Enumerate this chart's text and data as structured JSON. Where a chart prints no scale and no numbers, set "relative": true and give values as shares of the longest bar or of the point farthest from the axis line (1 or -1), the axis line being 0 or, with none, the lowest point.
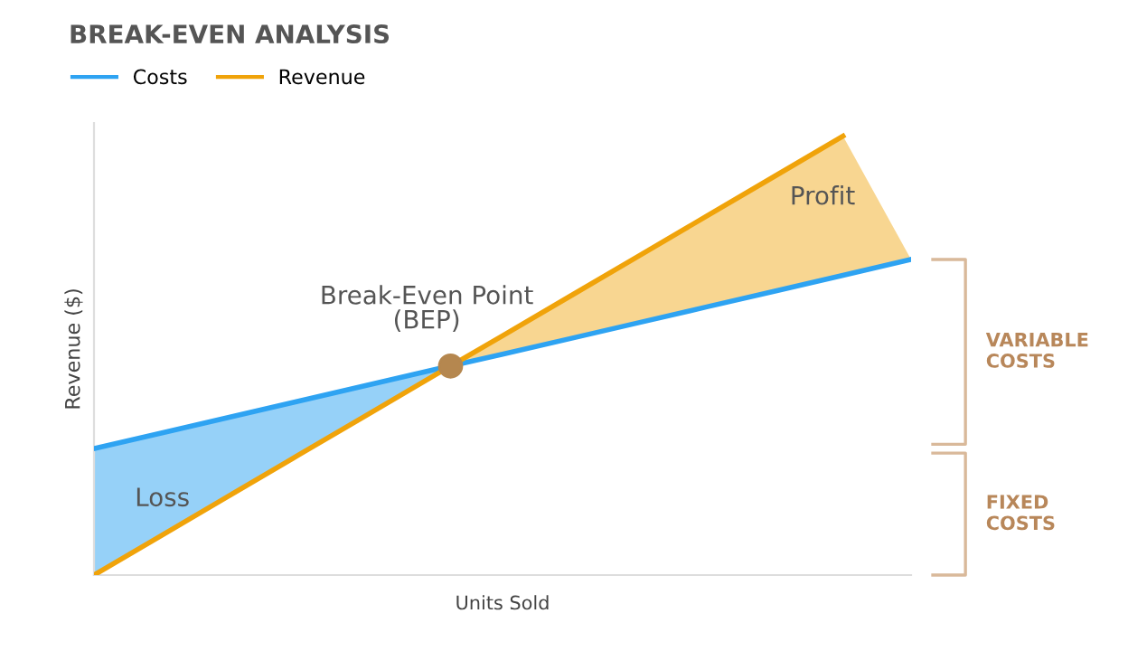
{
  "chart_data": {
    "type": "line",
    "title": "BREAK-EVEN ANALYSIS",
    "xlabel": "Units Sold",
    "ylabel": "Revenue ($)",
    "relative": true,
    "legend": "top left",
    "marker": "none",
    "line_style": "solid",
    "categories": [
      null,
      null,
      null,
      null,
      null,
      null,
      null,
      null,
      null,
      null,
      null,
      null,
      null
    ],
    "series": [
      {
        "name": "Costs",
        "color": "#2ea3f2",
        "values": [
          0.288,
          0.324,
          0.36,
          0.396,
          0.432,
          0.468,
          0.503,
          0.539,
          0.575,
          0.611,
          0.647,
          0.683,
          0.719
        ]
      },
      {
        "name": "Revenue",
        "color": "#f0a30a",
        "values": [
          0,
          0.091,
          0.182,
          0.273,
          0.364,
          0.455,
          0.545,
          0.636,
          0.727,
          0.818,
          0.909,
          1.0,
          null
        ]
      }
    ],
    "annotations": [
      "Loss",
      {
        "text": "Break-Even Point\n(BEP)",
        "y": 0.47
      },
      "Profit",
      "VARIABLE\nCOSTS",
      "FIXED\nCOSTS"
    ]
  }
}
